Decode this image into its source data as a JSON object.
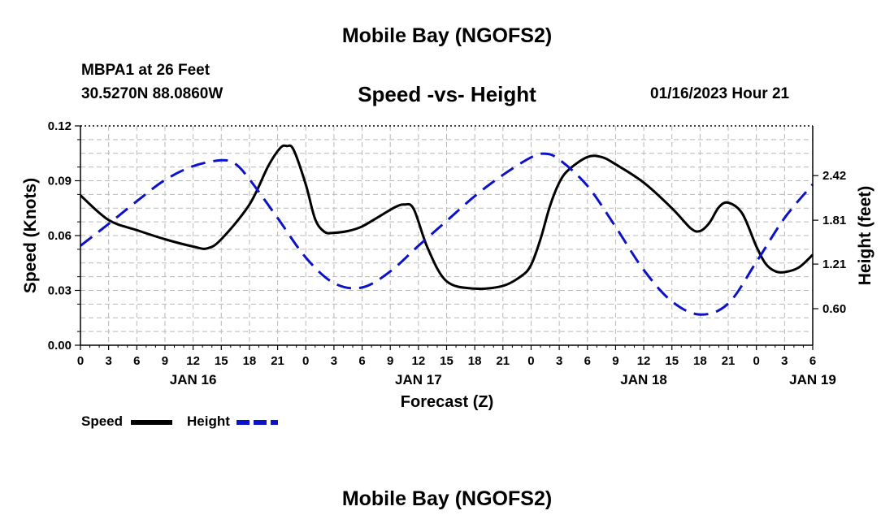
{
  "page": {
    "title_top": "Mobile Bay (NGOFS2)",
    "title_bottom": "Mobile Bay (NGOFS2)",
    "station": "MBPA1 at 26 Feet",
    "coords": "30.5270N  88.0860W",
    "subtitle": "Speed -vs- Height",
    "datetime": "01/16/2023 Hour 21"
  },
  "colors": {
    "speed": "#000000",
    "height": "#0b12c8",
    "grid": "#b8b8b8"
  },
  "chart_data": {
    "type": "line",
    "title": "Speed -vs- Height",
    "xlabel": "Forecast (Z)",
    "ylabel": "Speed (Knots)",
    "y2label": "Height (feet)",
    "xlim": [
      0,
      78
    ],
    "ylim": [
      0,
      0.12
    ],
    "y2lim": [
      0.1,
      3.1
    ],
    "x_ticks": [
      0,
      3,
      6,
      9,
      12,
      15,
      18,
      21,
      24,
      27,
      30,
      33,
      36,
      39,
      42,
      45,
      48,
      51,
      54,
      57,
      60,
      63,
      66,
      69,
      72,
      75,
      78
    ],
    "x_tick_labels": [
      "0",
      "3",
      "6",
      "9",
      "12",
      "15",
      "18",
      "21",
      "0",
      "3",
      "6",
      "9",
      "12",
      "15",
      "18",
      "21",
      "0",
      "3",
      "6",
      "9",
      "12",
      "15",
      "18",
      "21",
      "0",
      "3",
      "6"
    ],
    "date_labels": [
      {
        "x": 12,
        "label": "JAN 16"
      },
      {
        "x": 36,
        "label": "JAN 17"
      },
      {
        "x": 60,
        "label": "JAN 18"
      },
      {
        "x": 78,
        "label": "JAN 19"
      }
    ],
    "y_ticks": [
      0.0,
      0.03,
      0.06,
      0.09,
      0.12
    ],
    "y_tick_labels": [
      "0.00",
      "0.03",
      "0.06",
      "0.09",
      "0.12"
    ],
    "y2_ticks": [
      0.6,
      1.21,
      1.81,
      2.42
    ],
    "y2_tick_labels": [
      "0.60",
      "1.21",
      "1.81",
      "2.42"
    ],
    "grid": true,
    "legend_position": "bottom-left",
    "series": [
      {
        "name": "Speed",
        "axis": "left",
        "style": "solid",
        "x": [
          0,
          3,
          6,
          9,
          12,
          13.5,
          15,
          18,
          20,
          21.3,
          22,
          22.7,
          24,
          25,
          26,
          27,
          28.5,
          30,
          32,
          33.5,
          34.5,
          35.5,
          37,
          39,
          42,
          45,
          47,
          48,
          49,
          50,
          51,
          52,
          54,
          55.5,
          57,
          60,
          63,
          65,
          66,
          67,
          68,
          69,
          70.5,
          72,
          73,
          74,
          75,
          76.5,
          78
        ],
        "values": [
          0.082,
          0.0685,
          0.063,
          0.058,
          0.054,
          0.053,
          0.058,
          0.077,
          0.098,
          0.108,
          0.109,
          0.107,
          0.088,
          0.069,
          0.062,
          0.0615,
          0.0625,
          0.065,
          0.071,
          0.0755,
          0.077,
          0.0745,
          0.053,
          0.035,
          0.031,
          0.0325,
          0.038,
          0.044,
          0.058,
          0.076,
          0.089,
          0.096,
          0.103,
          0.103,
          0.099,
          0.089,
          0.075,
          0.064,
          0.0625,
          0.067,
          0.0755,
          0.078,
          0.072,
          0.054,
          0.0445,
          0.0405,
          0.04,
          0.0425,
          0.0495
        ]
      },
      {
        "name": "Height",
        "axis": "right",
        "style": "dashed",
        "x": [
          0,
          3,
          6,
          9,
          12,
          15,
          16.5,
          18,
          21,
          24,
          27,
          30,
          33,
          36,
          39,
          42,
          45,
          48,
          49.5,
          51,
          54,
          57,
          60,
          63,
          66,
          69,
          72,
          75,
          78
        ],
        "values": [
          1.46,
          1.76,
          2.07,
          2.36,
          2.55,
          2.63,
          2.58,
          2.37,
          1.84,
          1.3,
          0.95,
          0.89,
          1.11,
          1.46,
          1.8,
          2.14,
          2.43,
          2.67,
          2.72,
          2.64,
          2.28,
          1.72,
          1.13,
          0.7,
          0.52,
          0.67,
          1.24,
          1.84,
          2.3
        ]
      }
    ]
  },
  "legend": {
    "speed_label": "Speed",
    "height_label": "Height"
  }
}
